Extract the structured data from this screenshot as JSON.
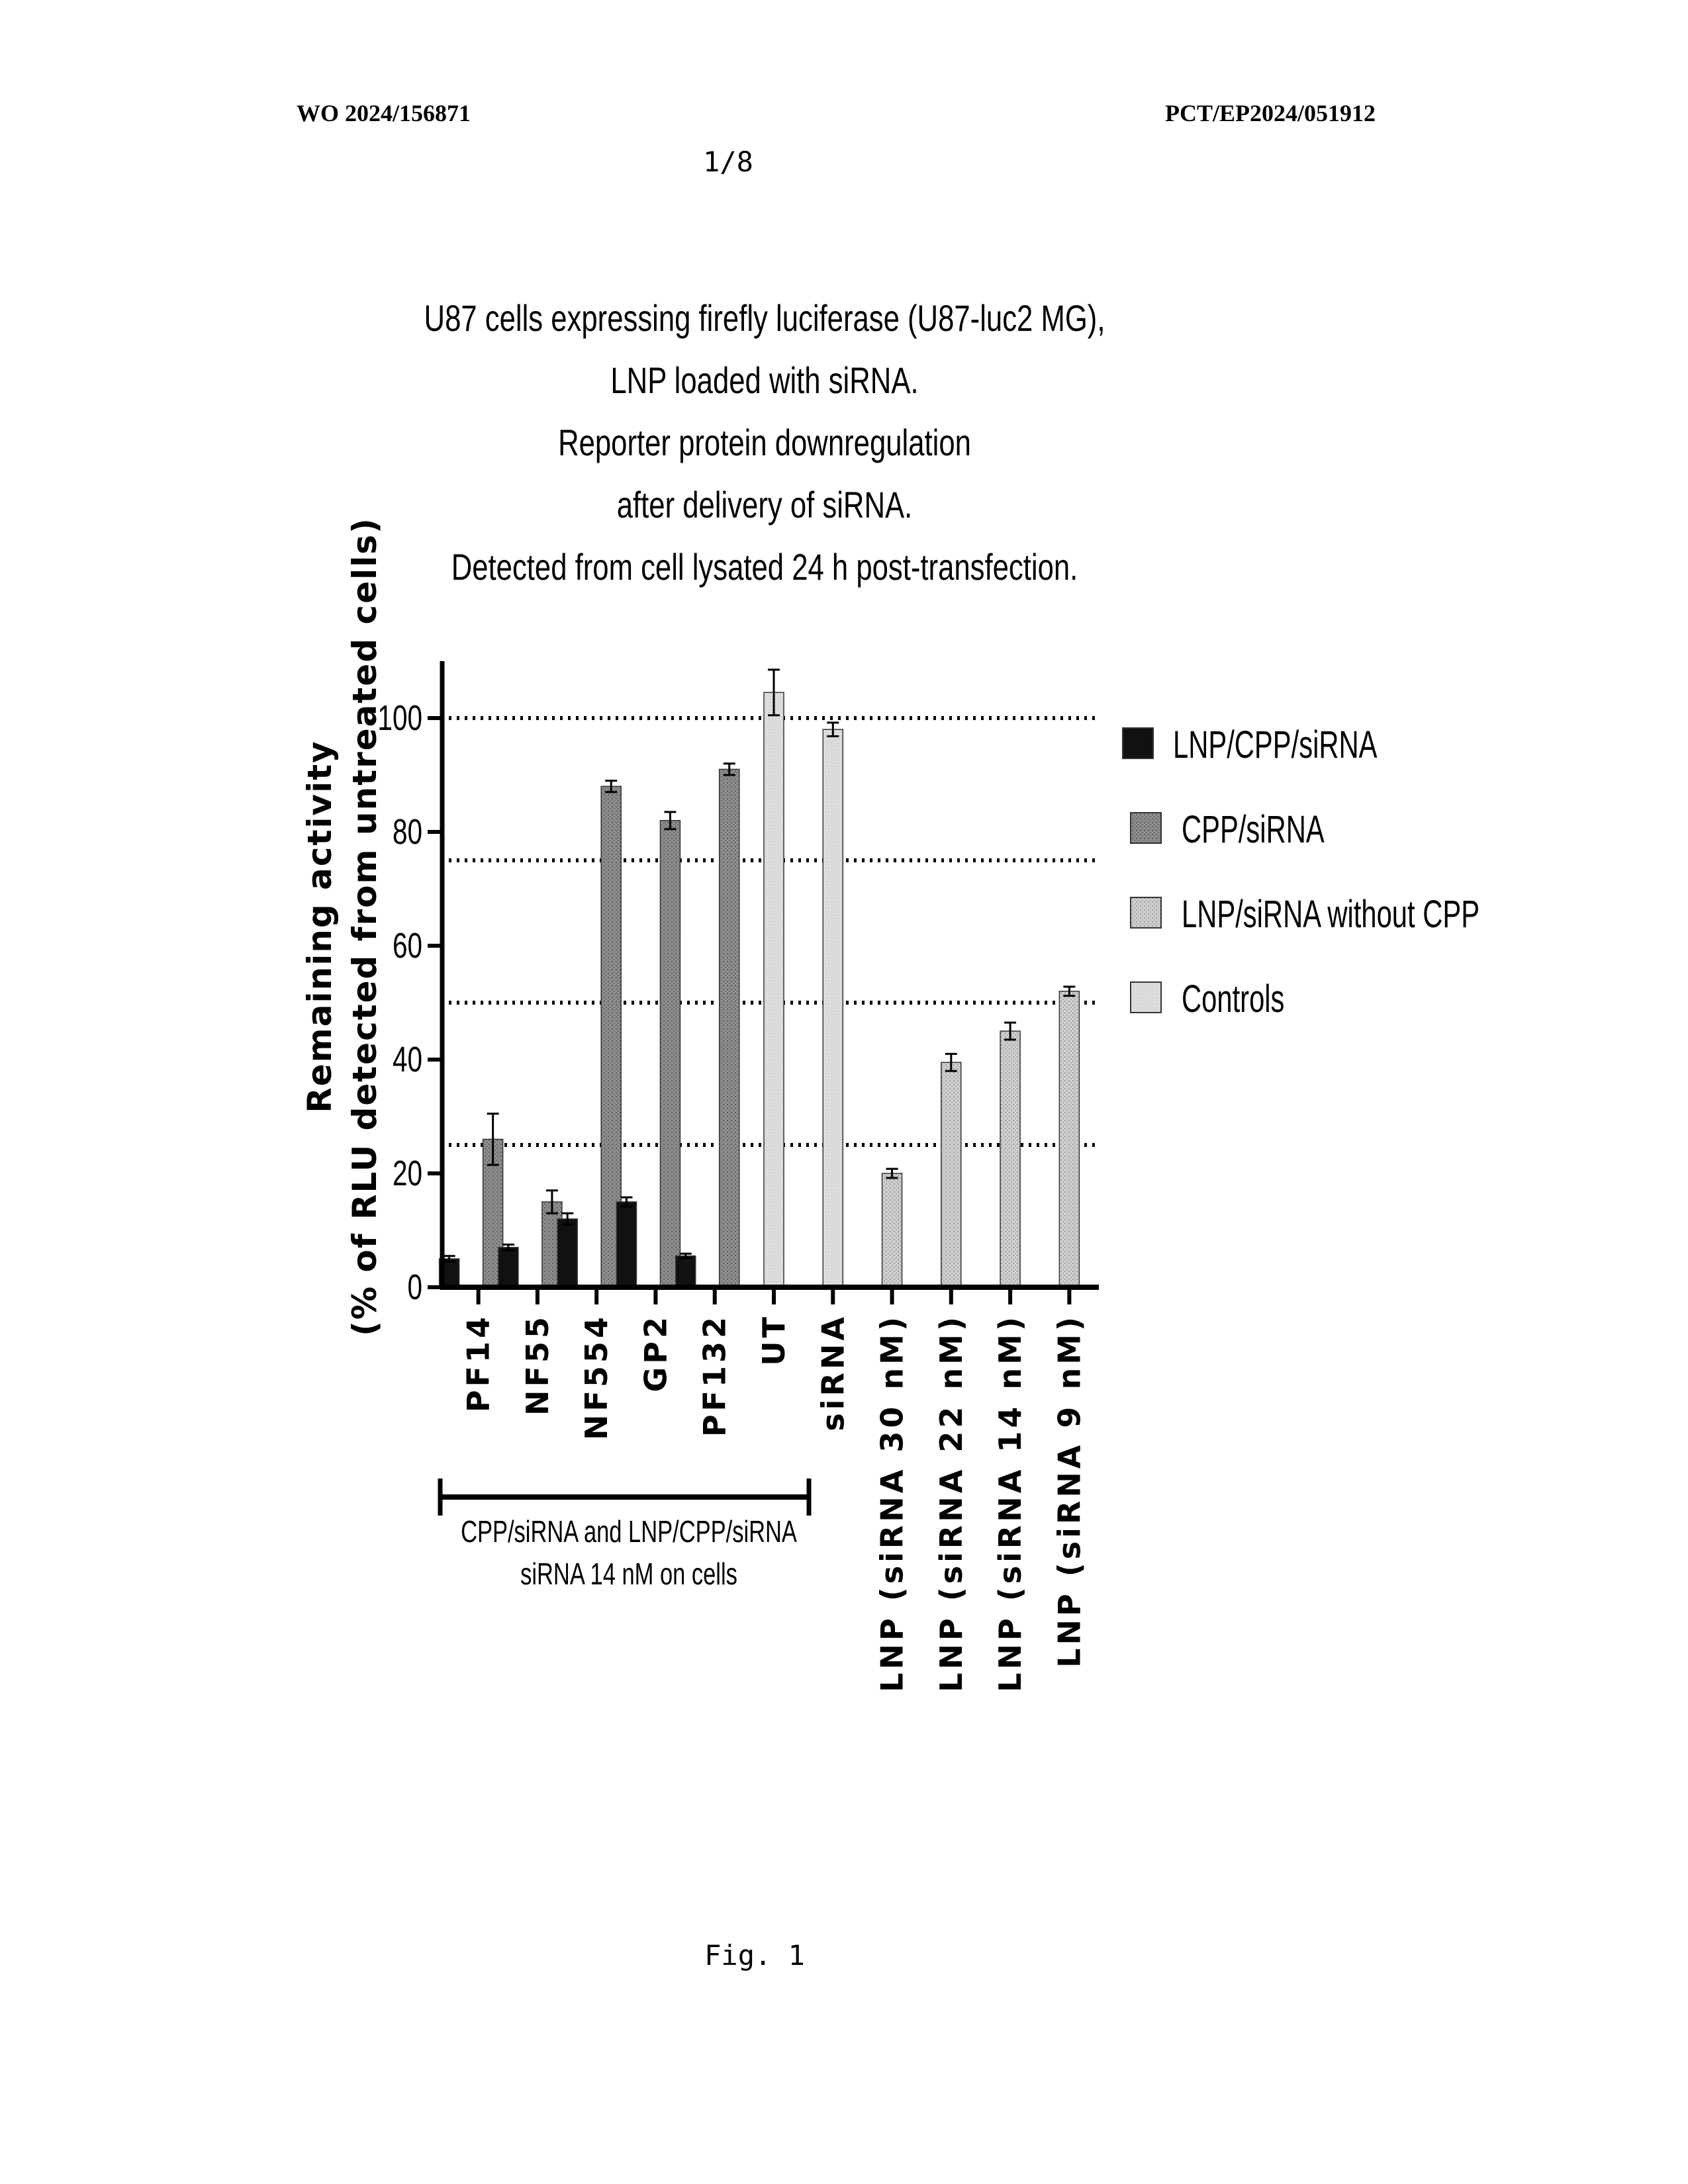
{
  "header": {
    "publication_number": "WO 2024/156871",
    "application_number": "PCT/EP2024/051912",
    "sheet": "1/8"
  },
  "figure_caption": "Fig. 1",
  "chart_data": {
    "type": "bar",
    "title_lines": [
      "U87 cells expressing firefly luciferase (U87-luc2 MG),",
      "LNP loaded with siRNA.",
      "Reporter protein downregulation",
      "after delivery of siRNA.",
      "Detected from cell lysated 24 h post-transfection."
    ],
    "ylabel_lines": [
      "Remaining activity",
      "(% of RLU detected from untreated cells)"
    ],
    "ylim": [
      0,
      110
    ],
    "yticks": [
      0,
      20,
      40,
      60,
      80,
      100
    ],
    "reference_lines": [
      25,
      50,
      75,
      100
    ],
    "legend": [
      {
        "label": "LNP/CPP/siRNA",
        "color": "#111111"
      },
      {
        "label": "CPP/siRNA",
        "color": "#8a8a8a"
      },
      {
        "label": "LNP/siRNA without CPP",
        "color": "#c9c9c9"
      },
      {
        "label": "Controls",
        "color": "#d4d4d4"
      }
    ],
    "categories": [
      "PF14",
      "NF55",
      "NF554",
      "GP2",
      "PF132",
      "UT",
      "siRNA",
      "LNP (siRNA 30 nM)",
      "LNP (siRNA 22 nM)",
      "LNP (siRNA 14 nM)",
      "LNP (siRNA 9 nM)"
    ],
    "bars": [
      {
        "category": "PF14",
        "series": "LNP/CPP/siRNA",
        "value": 5,
        "error": 0.5
      },
      {
        "category": "PF14",
        "series": "CPP/siRNA",
        "value": 26,
        "error": 4.5
      },
      {
        "category": "NF55",
        "series": "LNP/CPP/siRNA",
        "value": 7,
        "error": 0.5
      },
      {
        "category": "NF55",
        "series": "CPP/siRNA",
        "value": 15,
        "error": 2
      },
      {
        "category": "NF554",
        "series": "LNP/CPP/siRNA",
        "value": 12,
        "error": 1
      },
      {
        "category": "NF554",
        "series": "CPP/siRNA",
        "value": 88,
        "error": 1
      },
      {
        "category": "GP2",
        "series": "LNP/CPP/siRNA",
        "value": 15,
        "error": 0.8
      },
      {
        "category": "GP2",
        "series": "CPP/siRNA",
        "value": 82,
        "error": 1.5
      },
      {
        "category": "PF132",
        "series": "LNP/CPP/siRNA",
        "value": 5.5,
        "error": 0.4
      },
      {
        "category": "PF132",
        "series": "CPP/siRNA",
        "value": 91,
        "error": 1
      },
      {
        "category": "UT",
        "series": "Controls",
        "value": 104.5,
        "error": 4
      },
      {
        "category": "siRNA",
        "series": "Controls",
        "value": 98,
        "error": 1.2
      },
      {
        "category": "LNP (siRNA 30 nM)",
        "series": "LNP/siRNA without CPP",
        "value": 20,
        "error": 0.8
      },
      {
        "category": "LNP (siRNA 22 nM)",
        "series": "LNP/siRNA without CPP",
        "value": 39.5,
        "error": 1.5
      },
      {
        "category": "LNP (siRNA 14 nM)",
        "series": "LNP/siRNA without CPP",
        "value": 45,
        "error": 1.5
      },
      {
        "category": "LNP (siRNA 9 nM)",
        "series": "LNP/siRNA without CPP",
        "value": 52,
        "error": 0.8
      }
    ],
    "group_annotation_lines": [
      "CPP/siRNA and LNP/CPP/siRNA",
      "siRNA 14 nM on cells"
    ]
  }
}
